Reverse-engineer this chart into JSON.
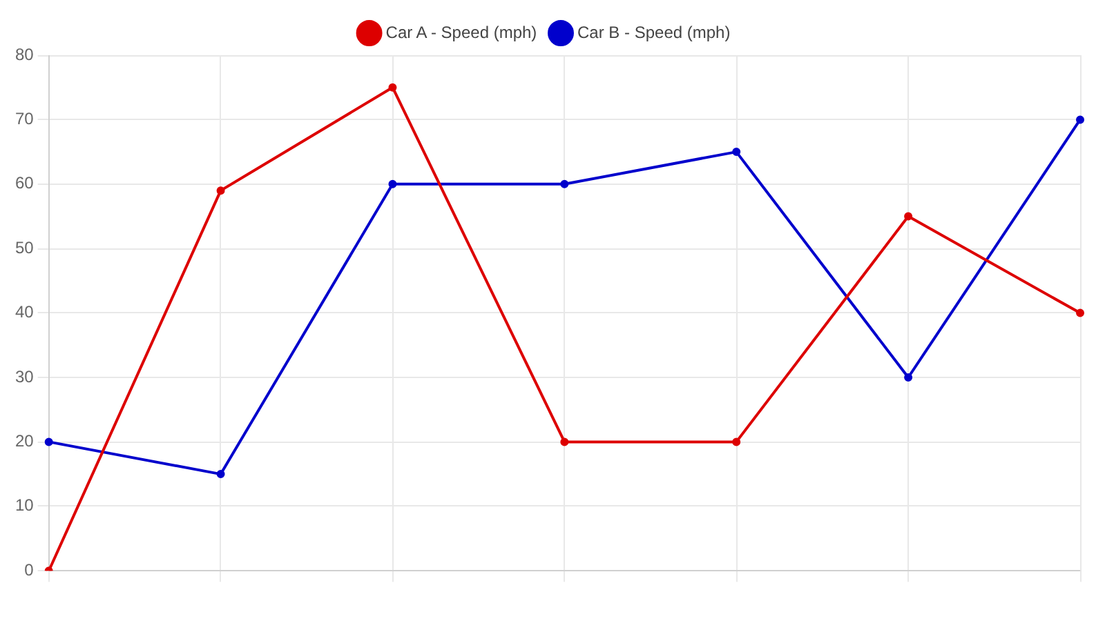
{
  "chart_data": {
    "type": "line",
    "categories": [
      null,
      null,
      null,
      null,
      null,
      null,
      null
    ],
    "series": [
      {
        "name": "Car A - Speed (mph)",
        "color": "#dd0000",
        "values": [
          0,
          59,
          75,
          20,
          20,
          55,
          40
        ]
      },
      {
        "name": "Car B - Speed (mph)",
        "color": "#0000cc",
        "values": [
          20,
          15,
          60,
          60,
          65,
          30,
          70
        ]
      }
    ],
    "ylim": [
      0,
      80
    ],
    "yticks": [
      0,
      10,
      20,
      30,
      40,
      50,
      60,
      70,
      80
    ],
    "grid": true,
    "legend": "top",
    "marker": "circle"
  }
}
